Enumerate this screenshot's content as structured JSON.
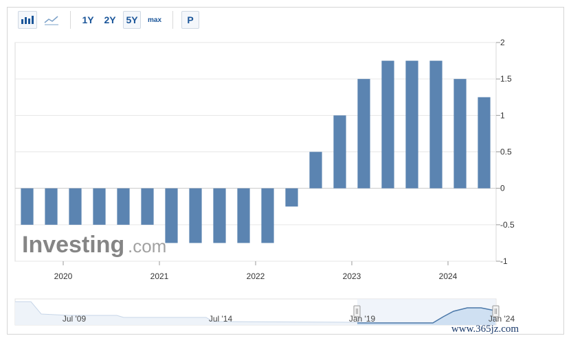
{
  "toolbar": {
    "bar_icon": "bar-chart-icon",
    "line_icon": "line-chart-icon",
    "ranges": [
      "1Y",
      "2Y",
      "5Y",
      "max"
    ],
    "selected_range": "5Y",
    "period_button": "P"
  },
  "watermark": {
    "brand": "Investing",
    "suffix": ".com",
    "site": "www.365jz.com"
  },
  "chart_data": {
    "type": "bar",
    "bar_color": "#5b84b1",
    "ylim": [
      -1,
      2
    ],
    "yticks": [
      "2",
      "1.5",
      "1",
      "0.5",
      "0",
      "-0.5",
      "-1"
    ],
    "ytick_values": [
      2,
      1.5,
      1,
      0.5,
      0,
      -0.5,
      -1
    ],
    "year_labels": [
      {
        "label": "2020",
        "index": 1.5
      },
      {
        "label": "2021",
        "index": 5.5
      },
      {
        "label": "2022",
        "index": 9.5
      },
      {
        "label": "2023",
        "index": 13.5
      },
      {
        "label": "2024",
        "index": 17.5
      }
    ],
    "values": [
      -0.5,
      -0.5,
      -0.5,
      -0.5,
      -0.5,
      -0.5,
      -0.75,
      -0.75,
      -0.75,
      -0.75,
      -0.75,
      -0.25,
      0.5,
      1.0,
      1.5,
      1.75,
      1.75,
      1.75,
      1.5,
      1.25
    ],
    "grid": true
  },
  "navigator": {
    "labels": [
      "Jul '09",
      "Jul '14",
      "Jan '19",
      "Jan '24"
    ]
  }
}
